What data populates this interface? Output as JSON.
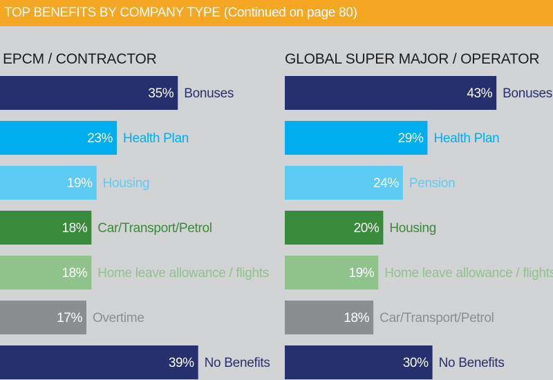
{
  "banner": {
    "title": "TOP BENEFITS BY COMPANY TYPE (Continued on page 80)"
  },
  "colors": {
    "Bonuses": "#27306f",
    "Health Plan": "#00aeef",
    "Housing": "#5ecbf3",
    "Car/Transport/Petrol": "#3a8a3c",
    "Home leave allowance / flights": "#90c28b",
    "Overtime": "#8c8d90",
    "Pension": "#5ecbf3",
    "No Benefits": "#27306f"
  },
  "chart_data": [
    {
      "type": "bar",
      "orientation": "horizontal",
      "title": "EPCM / CONTRACTOR",
      "unit": "%",
      "categories": [
        "Bonuses",
        "Health Plan",
        "Housing",
        "Car/Transport/Petrol",
        "Home leave allowance / flights",
        "Overtime",
        "No Benefits"
      ],
      "values": [
        35,
        23,
        19,
        18,
        18,
        17,
        39
      ],
      "value_labels": [
        "35%",
        "23%",
        "19%",
        "18%",
        "18%",
        "17%",
        "39%"
      ],
      "bar_colors": [
        "#27306f",
        "#00aeef",
        "#5ecbf3",
        "#3a8a3c",
        "#90c28b",
        "#8c8d90",
        "#27306f"
      ],
      "label_colors": [
        "#27306f",
        "#00aeef",
        "#5ecbf3",
        "#3a8a3c",
        "#90c28b",
        "#8c8d90",
        "#27306f"
      ]
    },
    {
      "type": "bar",
      "orientation": "horizontal",
      "title": "GLOBAL SUPER MAJOR / OPERATOR",
      "unit": "%",
      "categories": [
        "Bonuses",
        "Health Plan",
        "Pension",
        "Housing",
        "Home leave allowance / flights",
        "Car/Transport/Petrol",
        "No Benefits"
      ],
      "values": [
        43,
        29,
        24,
        20,
        19,
        18,
        30
      ],
      "value_labels": [
        "43%",
        "29%",
        "24%",
        "20%",
        "19%",
        "18%",
        "30%"
      ],
      "bar_colors": [
        "#27306f",
        "#00aeef",
        "#5ecbf3",
        "#3a8a3c",
        "#90c28b",
        "#8c8d90",
        "#27306f"
      ],
      "label_colors": [
        "#27306f",
        "#00aeef",
        "#5ecbf3",
        "#3a8a3c",
        "#90c28b",
        "#8c8d90",
        "#27306f"
      ]
    }
  ]
}
